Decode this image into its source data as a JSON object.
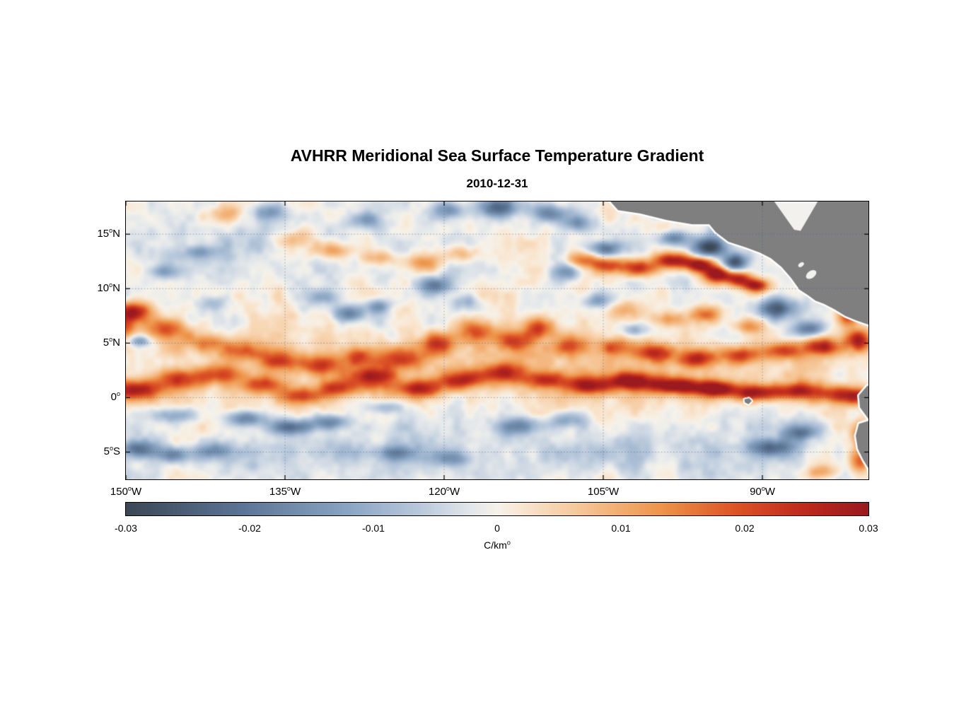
{
  "chart_data": {
    "type": "heatmap",
    "title": "AVHRR Meridional Sea Surface Temperature Gradient",
    "subtitle": "2010-12-31",
    "units_label": {
      "sup": "o",
      "text": "C/km"
    },
    "lon_range": [
      -150,
      -80
    ],
    "lat_range": [
      -7.5,
      18
    ],
    "x_ticks": [
      {
        "lon": -150,
        "text": "150",
        "sup": "o",
        "suffix": "W"
      },
      {
        "lon": -135,
        "text": "135",
        "sup": "o",
        "suffix": "W"
      },
      {
        "lon": -120,
        "text": "120",
        "sup": "o",
        "suffix": "W"
      },
      {
        "lon": -105,
        "text": "105",
        "sup": "o",
        "suffix": "W"
      },
      {
        "lon": -90,
        "text": "90",
        "sup": "o",
        "suffix": "W"
      }
    ],
    "y_ticks": [
      {
        "lat": 15,
        "text": "15",
        "sup": "o",
        "suffix": "N"
      },
      {
        "lat": 10,
        "text": "10",
        "sup": "o",
        "suffix": "N"
      },
      {
        "lat": 5,
        "text": "5",
        "sup": "o",
        "suffix": "N"
      },
      {
        "lat": 0,
        "text": "0",
        "sup": "o",
        "suffix": ""
      },
      {
        "lat": -5,
        "text": "5",
        "sup": "o",
        "suffix": "S"
      }
    ],
    "grid": {
      "color": "rgba(70,95,140,0.55)",
      "dash": [
        1.5,
        2.8
      ]
    },
    "colorbar": {
      "min": -0.03,
      "max": 0.03,
      "ticks": [
        "-0.03",
        "-0.02",
        "-0.01",
        "0",
        "0.01",
        "0.02",
        "0.03"
      ]
    },
    "colormap": [
      [
        0.0,
        "#3c4855"
      ],
      [
        0.15,
        "#5b7394"
      ],
      [
        0.3,
        "#8aa5c4"
      ],
      [
        0.4,
        "#bccbdd"
      ],
      [
        0.47,
        "#e6e9eb"
      ],
      [
        0.5,
        "#f6f2ea"
      ],
      [
        0.53,
        "#f9e8d4"
      ],
      [
        0.62,
        "#f5c392"
      ],
      [
        0.72,
        "#ee954b"
      ],
      [
        0.82,
        "#dd5526"
      ],
      [
        0.91,
        "#c02b1d"
      ],
      [
        1.0,
        "#9a1a1f"
      ]
    ],
    "land_color": "#7f7f7f",
    "coast_halo_color": "#ffffff",
    "noise": {
      "seed": 7,
      "amp": 0.007
    },
    "features": [
      [
        -115,
        2.5,
        0.006,
        40,
        2.6
      ],
      [
        -118,
        -4.8,
        -0.005,
        40,
        2.6
      ],
      [
        -135,
        13.5,
        -0.003,
        18,
        3.5
      ],
      [
        -149,
        0.7,
        0.028,
        2.2,
        0.9
      ],
      [
        -145,
        1.6,
        0.02,
        2.2,
        0.9
      ],
      [
        -141,
        2.1,
        0.018,
        2.2,
        0.9
      ],
      [
        -137,
        1.2,
        0.02,
        2,
        0.8
      ],
      [
        -133.5,
        0.1,
        0.02,
        2,
        0.8
      ],
      [
        -130,
        0.9,
        0.02,
        2,
        0.8
      ],
      [
        -126.5,
        1.9,
        0.021,
        2.2,
        0.9
      ],
      [
        -122.5,
        0.8,
        0.024,
        2.2,
        0.8
      ],
      [
        -118.5,
        1.6,
        0.022,
        2.2,
        0.9
      ],
      [
        -114.5,
        2.3,
        0.02,
        2,
        0.9
      ],
      [
        -110.5,
        1.6,
        0.021,
        2,
        0.8
      ],
      [
        -106.5,
        1.1,
        0.024,
        2.2,
        0.8
      ],
      [
        -102.5,
        1.5,
        0.027,
        2.2,
        0.8
      ],
      [
        -98.5,
        1.1,
        0.03,
        2.2,
        0.75
      ],
      [
        -94.5,
        0.8,
        0.03,
        2.2,
        0.75
      ],
      [
        -90.5,
        0.4,
        0.028,
        2.2,
        0.75
      ],
      [
        -86.5,
        0.6,
        0.025,
        2.2,
        0.8
      ],
      [
        -82.5,
        0.3,
        0.023,
        2,
        0.8
      ],
      [
        -80.2,
        0,
        0.022,
        1.5,
        0.8
      ],
      [
        -124,
        3.6,
        0.019,
        2,
        1
      ],
      [
        -120.5,
        5,
        0.021,
        1.8,
        1
      ],
      [
        -117,
        6.1,
        0.02,
        1.7,
        1
      ],
      [
        -113.5,
        5.2,
        0.021,
        1.7,
        1
      ],
      [
        -111,
        6.4,
        0.02,
        1.5,
        0.9
      ],
      [
        -108,
        4.8,
        0.017,
        1.5,
        0.9
      ],
      [
        -128,
        3.8,
        0.015,
        1.6,
        0.8
      ],
      [
        -149.5,
        7.8,
        0.028,
        1.8,
        1
      ],
      [
        -150.5,
        6.3,
        0.018,
        1.2,
        0.8
      ],
      [
        -146,
        6.3,
        0.018,
        2,
        0.9
      ],
      [
        -142.5,
        5.1,
        0.016,
        2,
        0.9
      ],
      [
        -139,
        4.3,
        0.018,
        2,
        0.9
      ],
      [
        -135.5,
        3.3,
        0.02,
        2,
        0.9
      ],
      [
        -131.5,
        2.9,
        0.018,
        2,
        0.9
      ],
      [
        -130.5,
        13.5,
        0.014,
        1.8,
        0.8
      ],
      [
        -126,
        12.8,
        0.012,
        1.6,
        0.7
      ],
      [
        -122,
        12.4,
        0.013,
        1.8,
        0.8
      ],
      [
        -118.5,
        13.2,
        0.011,
        1.5,
        0.7
      ],
      [
        -140.5,
        16.8,
        0.011,
        1.8,
        0.8
      ],
      [
        -134,
        14.5,
        0.009,
        1.6,
        0.8
      ],
      [
        -107,
        12.7,
        0.016,
        1.6,
        0.7
      ],
      [
        -104.5,
        12.1,
        0.02,
        1.6,
        0.7
      ],
      [
        -101.5,
        11.9,
        0.024,
        1.8,
        0.8
      ],
      [
        -98.5,
        12.6,
        0.03,
        1.6,
        0.7
      ],
      [
        -96,
        12.2,
        0.032,
        1.4,
        0.7
      ],
      [
        -94.3,
        11.3,
        0.03,
        1.2,
        0.7
      ],
      [
        -92.3,
        10.9,
        0.026,
        1.2,
        0.7
      ],
      [
        -90.6,
        10.3,
        0.028,
        1.2,
        0.6
      ],
      [
        -95,
        13.8,
        -0.03,
        1.6,
        0.9
      ],
      [
        -92.6,
        12.4,
        -0.028,
        1.2,
        0.8
      ],
      [
        -98.5,
        14.6,
        -0.018,
        1.5,
        0.7
      ],
      [
        -104.8,
        13.6,
        -0.02,
        1.5,
        0.7
      ],
      [
        -108.5,
        11.5,
        -0.014,
        1.4,
        0.8
      ],
      [
        -88.6,
        8.2,
        -0.026,
        1.8,
        1
      ],
      [
        -85.6,
        6.3,
        -0.02,
        1.5,
        0.8
      ],
      [
        -89.3,
        -4.6,
        -0.02,
        2,
        0.8
      ],
      [
        -86.5,
        -3.2,
        -0.016,
        1.5,
        0.7
      ],
      [
        -104,
        4.6,
        0.016,
        1.8,
        0.8
      ],
      [
        -100,
        4.1,
        0.019,
        1.8,
        0.8
      ],
      [
        -96,
        3.6,
        0.021,
        1.8,
        0.8
      ],
      [
        -92,
        3.9,
        0.02,
        1.8,
        0.8
      ],
      [
        -88,
        4.3,
        0.021,
        1.8,
        0.8
      ],
      [
        -84.5,
        4.7,
        0.024,
        1.6,
        0.8
      ],
      [
        -81,
        5.2,
        0.027,
        1.2,
        1
      ],
      [
        -103,
        8.1,
        0.013,
        1.5,
        0.8
      ],
      [
        -99,
        7.2,
        0.013,
        1.5,
        0.7
      ],
      [
        -95.3,
        7.6,
        0.015,
        1.4,
        0.7
      ],
      [
        -91.5,
        6.6,
        0.013,
        1.4,
        0.7
      ],
      [
        -82,
        7.5,
        0.02,
        1,
        0.9
      ],
      [
        -80.5,
        -3.6,
        0.026,
        0.9,
        1.2
      ],
      [
        -80.8,
        -5.8,
        0.02,
        0.9,
        1
      ],
      [
        -84.3,
        -6.8,
        0.012,
        1.5,
        0.7
      ],
      [
        -115,
        17.4,
        -0.022,
        1.8,
        0.9
      ],
      [
        -119.5,
        17.2,
        -0.015,
        1.5,
        0.8
      ],
      [
        -110,
        17,
        -0.018,
        1.8,
        0.8
      ],
      [
        -120.8,
        10.3,
        -0.018,
        1.8,
        0.8
      ],
      [
        -129,
        7.7,
        -0.02,
        1.5,
        0.8
      ],
      [
        -126.2,
        8.4,
        -0.015,
        1.3,
        0.7
      ],
      [
        -131.5,
        9.2,
        -0.012,
        1.5,
        0.7
      ],
      [
        -141.8,
        8.7,
        -0.01,
        1.5,
        0.7
      ],
      [
        -138.7,
        -1.9,
        -0.02,
        1.8,
        0.7
      ],
      [
        -134.5,
        -2.7,
        -0.022,
        2.2,
        0.7
      ],
      [
        -130.8,
        -2.2,
        -0.018,
        1.8,
        0.7
      ],
      [
        -145.5,
        -1.6,
        -0.014,
        2.2,
        0.7
      ],
      [
        -149,
        -4.7,
        -0.02,
        1.8,
        0.8
      ],
      [
        -145.5,
        -5.3,
        -0.015,
        1.8,
        0.7
      ],
      [
        -141.8,
        -4.9,
        -0.013,
        1.8,
        0.7
      ],
      [
        -124.7,
        -5.1,
        -0.015,
        1.8,
        0.7
      ],
      [
        -119.5,
        -5.6,
        -0.012,
        1.8,
        0.7
      ],
      [
        -113,
        -2.6,
        -0.015,
        2.2,
        0.8
      ],
      [
        -108.5,
        -2.1,
        -0.012,
        1.8,
        0.7
      ],
      [
        -127.5,
        16.3,
        -0.013,
        1.8,
        0.8
      ],
      [
        -136.5,
        17,
        -0.013,
        1.6,
        0.8
      ],
      [
        -99.5,
        17.3,
        -0.018,
        1.5,
        0.8
      ],
      [
        -107.5,
        16,
        -0.014,
        1.5,
        0.7
      ],
      [
        -148.7,
        5.2,
        -0.014,
        0.9,
        0.5
      ],
      [
        -143,
        13.3,
        -0.012,
        1.5,
        0.7
      ],
      [
        -146.5,
        11.5,
        -0.011,
        1.5,
        0.7
      ],
      [
        -105.5,
        8.9,
        -0.012,
        1.5,
        0.7
      ],
      [
        -118,
        8.8,
        -0.011,
        1.5,
        0.7
      ],
      [
        -125.5,
        -0.9,
        -0.012,
        1.5,
        0.6
      ],
      [
        -102,
        6.2,
        -0.012,
        1.3,
        0.6
      ]
    ],
    "land_polygons": [
      [
        [
          -104.6,
          18.3
        ],
        [
          -103.6,
          17.2
        ],
        [
          -101.5,
          16.9
        ],
        [
          -99,
          16.3
        ],
        [
          -96.6,
          15.9
        ],
        [
          -95,
          15.9
        ],
        [
          -94.4,
          15.2
        ],
        [
          -93.2,
          14.3
        ],
        [
          -91.6,
          13.8
        ],
        [
          -90.2,
          13.3
        ],
        [
          -89.2,
          12.8
        ],
        [
          -88.2,
          12
        ],
        [
          -87.3,
          11
        ],
        [
          -86.5,
          9.9
        ],
        [
          -85.7,
          9.4
        ],
        [
          -85,
          8.9
        ],
        [
          -84.2,
          8.6
        ],
        [
          -83.2,
          8.1
        ],
        [
          -82.2,
          7.5
        ],
        [
          -81.2,
          7.1
        ],
        [
          -80,
          6.7
        ],
        [
          -78.5,
          6.3
        ],
        [
          -78.5,
          18.3
        ]
      ],
      [
        [
          -78.5,
          0.9
        ],
        [
          -80.1,
          1.1
        ],
        [
          -80.9,
          0.2
        ],
        [
          -80.8,
          -0.9
        ],
        [
          -80.2,
          -1.7
        ],
        [
          -79.9,
          -2.1
        ],
        [
          -80.9,
          -2.4
        ],
        [
          -81.2,
          -3.5
        ],
        [
          -81,
          -4.7
        ],
        [
          -80.5,
          -5.7
        ],
        [
          -80,
          -6.5
        ],
        [
          -79.7,
          -7.8
        ],
        [
          -78.5,
          -7.8
        ]
      ]
    ],
    "water_cutouts": [
      [
        [
          -89.1,
          18.3
        ],
        [
          -87,
          15.4
        ],
        [
          -86.4,
          15.3
        ],
        [
          -84.6,
          18.3
        ]
      ]
    ],
    "lakes": [
      {
        "lon": -85.4,
        "lat": 11.3,
        "rx": 0.55,
        "ry": 0.33,
        "rot": -35
      },
      {
        "lon": -86.35,
        "lat": 12.2,
        "rx": 0.3,
        "ry": 0.18,
        "rot": -35
      }
    ],
    "islands": [
      [
        [
          -91.7,
          -0.15
        ],
        [
          -91.25,
          -0.05
        ],
        [
          -91,
          -0.3
        ],
        [
          -91.3,
          -0.6
        ],
        [
          -91.65,
          -0.45
        ]
      ]
    ]
  }
}
